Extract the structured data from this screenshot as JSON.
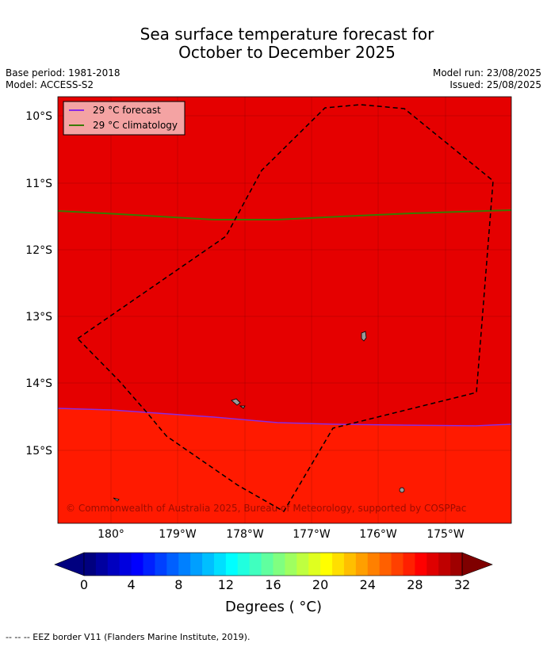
{
  "title": {
    "line1": "Sea surface temperature forecast for",
    "line2": "October to December 2025"
  },
  "meta": {
    "base_period": "Base period: 1981-2018",
    "model": "Model: ACCESS-S2",
    "model_run": "Model run: 23/08/2025",
    "issued": "Issued: 25/08/2025"
  },
  "map": {
    "lon_labels": [
      "180°",
      "179°W",
      "178°W",
      "177°W",
      "176°W",
      "175°W"
    ],
    "lat_labels": [
      "10°S",
      "11°S",
      "12°S",
      "13°S",
      "14°S",
      "15°S"
    ],
    "colors": {
      "sst_upper": "#e50000",
      "sst_lower": "#ff1a00",
      "forecast_isotherm": "#8a2be2",
      "climatology_isotherm": "#3a7a00",
      "eez_border": "#000000",
      "land": "#999999"
    },
    "legend": {
      "forecast": "29 °C  forecast",
      "climatology": "29 °C  climatology"
    },
    "copyright": "© Commonwealth of Australia 2025, Bureau of Meteorology, supported by COSPPac"
  },
  "colorbar": {
    "tick_labels": [
      "0",
      "4",
      "8",
      "12",
      "16",
      "20",
      "24",
      "28",
      "32"
    ],
    "units_label": "Degrees ( °C)",
    "colors": [
      "#00007f",
      "#00009f",
      "#0000bf",
      "#0000df",
      "#0000ff",
      "#0020ff",
      "#0040ff",
      "#0060ff",
      "#0080ff",
      "#009fff",
      "#00bfff",
      "#00dfff",
      "#00ffff",
      "#20ffdf",
      "#40ffbf",
      "#60ff9f",
      "#80ff80",
      "#9fff60",
      "#bfff40",
      "#dfff20",
      "#ffff00",
      "#ffdf00",
      "#ffbf00",
      "#ff9f00",
      "#ff8000",
      "#ff6000",
      "#ff4000",
      "#ff2000",
      "#ff0000",
      "#df0000",
      "#bf0000",
      "#9f0000"
    ],
    "under_color": "#00007f",
    "over_color": "#7f0000"
  },
  "footnote": "--  --  -- EEZ border V11 (Flanders Marine Institute, 2019)."
}
